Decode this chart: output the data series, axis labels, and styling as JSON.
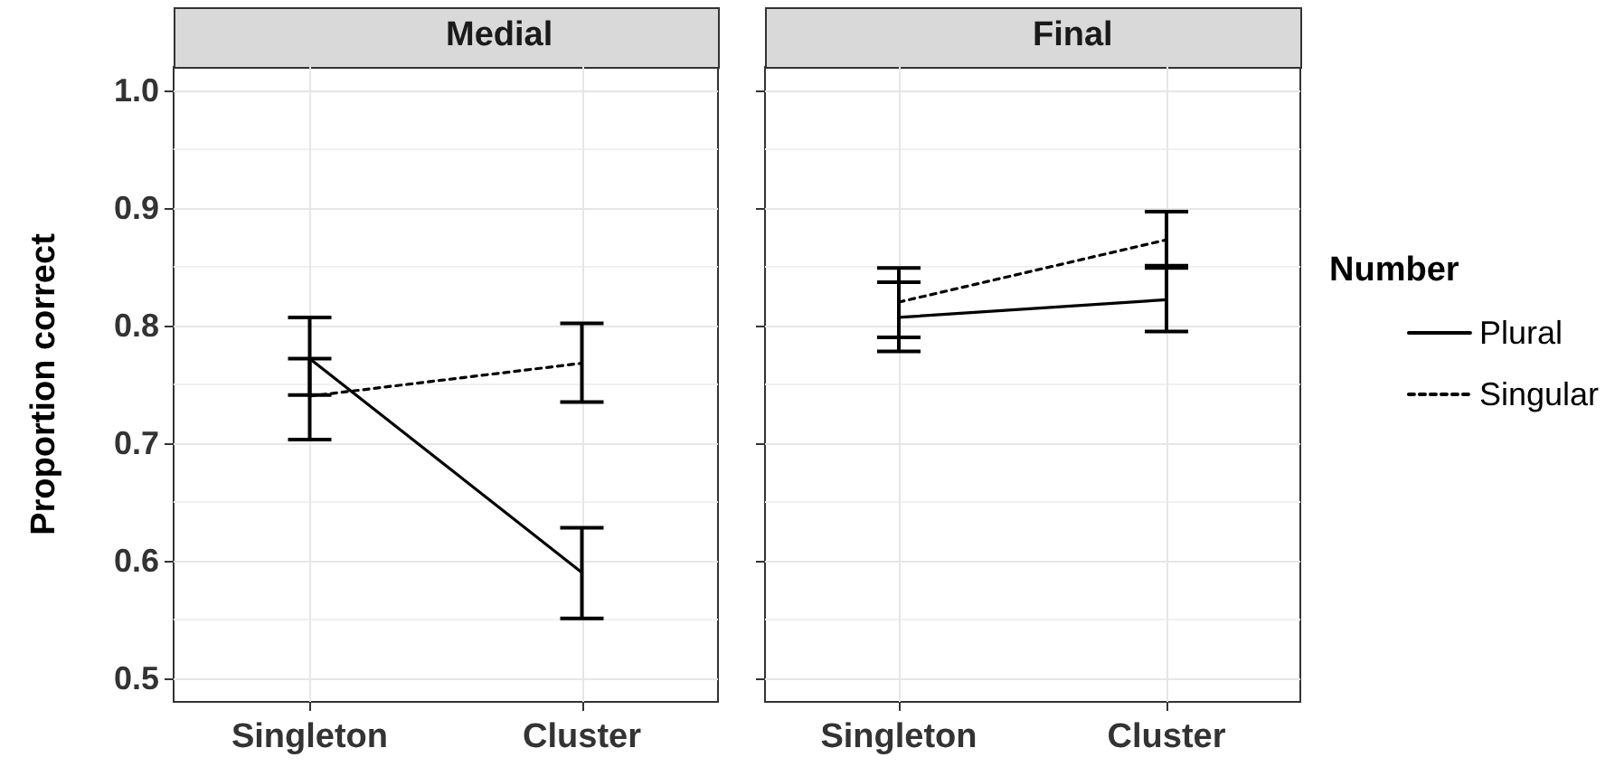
{
  "chart_data": [
    {
      "type": "line",
      "title": "Medial",
      "ylabel": "Proportion correct",
      "categories": [
        "Singleton",
        "Cluster"
      ],
      "ylim": [
        0.48,
        1.02
      ],
      "yticks": [
        {
          "value": 0.5,
          "label": "0.5"
        },
        {
          "value": 0.6,
          "label": "0.6"
        },
        {
          "value": 0.7,
          "label": "0.7"
        },
        {
          "value": 0.8,
          "label": "0.8"
        },
        {
          "value": 0.9,
          "label": "0.9"
        },
        {
          "value": 1.0,
          "label": "1.0"
        }
      ],
      "grid": true,
      "legend": false,
      "marker": "none",
      "series": [
        {
          "color": "#000000",
          "line_style": "solid",
          "values": [
            0.772,
            0.59
          ],
          "errors": [
            [
              0.741,
              0.807
            ],
            [
              0.551,
              0.628
            ]
          ]
        },
        {
          "color": "#000000",
          "line_style": "dotted",
          "values": [
            0.74,
            0.768
          ],
          "errors": [
            [
              0.703,
              0.772
            ],
            [
              0.735,
              0.802
            ]
          ]
        }
      ]
    },
    {
      "type": "line",
      "title": "Final",
      "legend_title": "Number",
      "categories": [
        "Singleton",
        "Cluster"
      ],
      "ylim": [
        0.48,
        1.02
      ],
      "yticks": [
        {
          "value": 0.5,
          "label": null
        },
        {
          "value": 0.6,
          "label": null
        },
        {
          "value": 0.7,
          "label": null
        },
        {
          "value": 0.8,
          "label": null
        },
        {
          "value": 0.9,
          "label": null
        },
        {
          "value": 1.0,
          "label": null
        }
      ],
      "grid": true,
      "legend": "right",
      "marker": "none",
      "tick_labels": "x",
      "series": [
        {
          "name": "Plural",
          "color": "#000000",
          "line_style": "solid",
          "values": [
            0.807,
            0.822
          ],
          "errors": [
            [
              0.778,
              0.837
            ],
            [
              0.795,
              0.851
            ]
          ]
        },
        {
          "name": "Singular",
          "color": "#000000",
          "line_style": "dotted",
          "values": [
            0.82,
            0.873
          ],
          "errors": [
            [
              0.79,
              0.849
            ],
            [
              0.849,
              0.897
            ]
          ]
        }
      ]
    }
  ]
}
